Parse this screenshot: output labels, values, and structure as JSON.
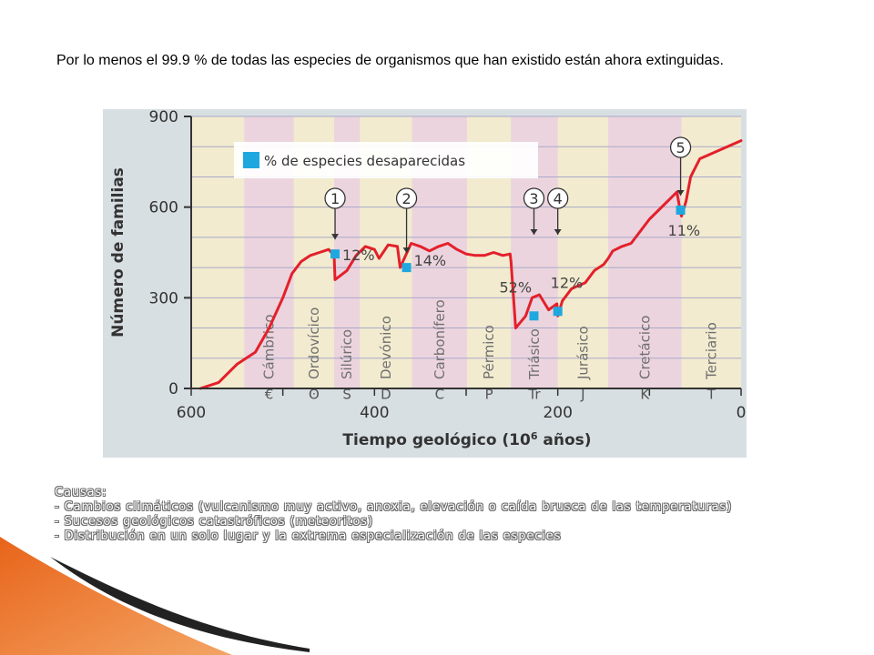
{
  "slide": {
    "title": "Por lo menos el 99.9 % de todas las especies de organismos que han existido están ahora extinguidas.",
    "causes_heading": "Causas:",
    "causes": [
      "- Cambios climáticos (vulcanismo muy activo, anoxia, elevación o caída brusca de las temperaturas)",
      "- Sucesos geológicos catastróficos (meteoritos)",
      "- Distribución en un solo lugar y la extrema especialización de las especies"
    ]
  },
  "chart_data": {
    "type": "line",
    "ylabel": "Número de familias",
    "xlabel": "Tiempo geológico (10⁶ años)",
    "xlabel_base": "Tiempo geológico (10",
    "xlabel_exp": "6",
    "xlabel_tail": " años)",
    "xlim": [
      600,
      0
    ],
    "ylim": [
      0,
      900
    ],
    "y_ticks": [
      "900",
      "600",
      "300",
      "0"
    ],
    "y_tick_values": [
      900,
      600,
      300,
      0
    ],
    "x_ticks": [
      "600",
      "400",
      "200",
      "0"
    ],
    "x_tick_values": [
      600,
      400,
      200,
      0
    ],
    "legend": {
      "label": "% de especies desaparecidas",
      "color": "#1fa8e0",
      "placement": "top-left"
    },
    "series": [
      {
        "color": "#e3202b",
        "x": [
          590,
          570,
          550,
          530,
          515,
          500,
          490,
          480,
          470,
          460,
          450,
          444,
          443,
          430,
          420,
          410,
          400,
          395,
          385,
          375,
          372,
          360,
          350,
          340,
          330,
          320,
          310,
          300,
          290,
          280,
          270,
          260,
          252,
          251,
          246,
          235,
          228,
          220,
          210,
          201,
          200,
          195,
          185,
          170,
          160,
          150,
          145,
          140,
          130,
          120,
          110,
          100,
          90,
          80,
          70,
          66,
          65,
          60,
          55,
          45,
          30,
          15,
          0
        ],
        "y": [
          0,
          20,
          80,
          120,
          200,
          300,
          380,
          420,
          440,
          450,
          460,
          440,
          360,
          390,
          440,
          470,
          460,
          430,
          475,
          470,
          400,
          480,
          470,
          455,
          470,
          480,
          460,
          445,
          440,
          440,
          450,
          440,
          445,
          420,
          200,
          240,
          300,
          310,
          260,
          280,
          240,
          290,
          330,
          350,
          390,
          410,
          430,
          455,
          470,
          480,
          520,
          560,
          590,
          620,
          650,
          580,
          570,
          620,
          700,
          760,
          780,
          800,
          820
        ]
      }
    ],
    "events": [
      {
        "number": "1",
        "x": 443,
        "y": 445,
        "label": "12%"
      },
      {
        "number": "2",
        "x": 365,
        "y": 400,
        "label": "14%"
      },
      {
        "number": "3",
        "x": 226,
        "y": 240,
        "label": "52%"
      },
      {
        "number": "4",
        "x": 200,
        "y": 255,
        "label": "12%"
      },
      {
        "number": "5",
        "x": 66,
        "y": 590,
        "label": "11%"
      }
    ],
    "periods": [
      {
        "name": "Cámbrico",
        "symbol": "€",
        "start": 542,
        "end": 488,
        "color": "#ecd4de"
      },
      {
        "name": "Ordovícico",
        "symbol": "ʘ",
        "start": 488,
        "end": 444,
        "color": "#f2ebcf"
      },
      {
        "name": "Silúrico",
        "symbol": "S",
        "start": 444,
        "end": 416,
        "color": "#ecd4de"
      },
      {
        "name": "Devónico",
        "symbol": "D",
        "start": 416,
        "end": 359,
        "color": "#f2ebcf"
      },
      {
        "name": "Carbonífero",
        "symbol": "C",
        "start": 359,
        "end": 299,
        "color": "#ecd4de"
      },
      {
        "name": "Pérmico",
        "symbol": "P",
        "start": 299,
        "end": 251,
        "color": "#f2ebcf"
      },
      {
        "name": "Triásico",
        "symbol": "Tr",
        "start": 251,
        "end": 200,
        "color": "#ecd4de"
      },
      {
        "name": "Jurásico",
        "symbol": "J",
        "start": 200,
        "end": 145,
        "color": "#f2ebcf"
      },
      {
        "name": "Cretácico",
        "symbol": "K",
        "start": 145,
        "end": 65,
        "color": "#ecd4de"
      },
      {
        "name": "Terciario",
        "symbol": "T",
        "start": 65,
        "end": 0,
        "color": "#f2ebcf"
      }
    ],
    "pre_cambrian_color": "#f2ebcf",
    "grid": true
  }
}
